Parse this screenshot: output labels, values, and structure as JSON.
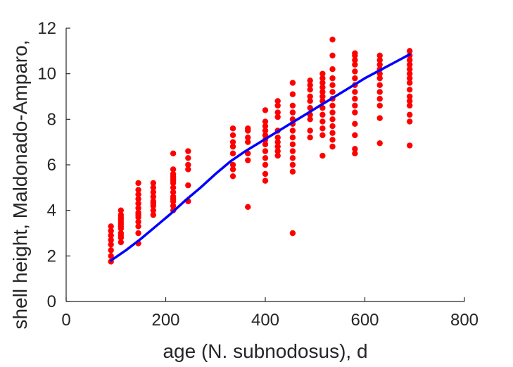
{
  "chart_data": {
    "type": "scatter",
    "title": "",
    "xlabel": "age (N. subnodosus), d",
    "ylabel": "shell height, Maldonado-Amparo,",
    "xlim": [
      0,
      800
    ],
    "ylim": [
      0,
      12
    ],
    "xticks": [
      "0",
      "200",
      "400",
      "600",
      "800"
    ],
    "yticks": [
      "0",
      "2",
      "4",
      "6",
      "8",
      "10",
      "12"
    ],
    "grid": false,
    "legend": "none",
    "colors": {
      "points": "#ff0000",
      "fit": "#0000ff",
      "axis": "#262626"
    },
    "series": [
      {
        "kind": "points",
        "x": [
          90,
          90,
          90,
          90,
          90,
          90,
          90,
          90,
          110,
          110,
          110,
          110,
          110,
          110,
          110,
          110,
          110,
          110,
          110,
          110,
          145,
          145,
          145,
          145,
          145,
          145,
          145,
          145,
          145,
          145,
          145,
          145,
          145,
          175,
          175,
          175,
          175,
          175,
          175,
          175,
          175,
          175,
          215,
          215,
          215,
          215,
          215,
          215,
          215,
          215,
          215,
          215,
          215,
          215,
          215,
          215,
          245,
          245,
          245,
          245,
          245,
          245,
          335,
          335,
          335,
          335,
          335,
          335,
          335,
          335,
          365,
          365,
          365,
          365,
          365,
          365,
          365,
          400,
          400,
          400,
          400,
          400,
          400,
          400,
          400,
          400,
          400,
          400,
          400,
          425,
          425,
          425,
          425,
          425,
          425,
          425,
          425,
          425,
          425,
          455,
          455,
          455,
          455,
          455,
          455,
          455,
          455,
          455,
          455,
          455,
          455,
          455,
          455,
          490,
          490,
          490,
          490,
          490,
          490,
          490,
          490,
          490,
          490,
          515,
          515,
          515,
          515,
          515,
          515,
          515,
          515,
          515,
          515,
          515,
          515,
          515,
          535,
          535,
          535,
          535,
          535,
          535,
          535,
          535,
          535,
          535,
          535,
          535,
          535,
          535,
          580,
          580,
          580,
          580,
          580,
          580,
          580,
          580,
          580,
          580,
          580,
          580,
          580,
          580,
          580,
          630,
          630,
          630,
          630,
          630,
          630,
          630,
          630,
          630,
          630,
          630,
          630,
          690,
          690,
          690,
          690,
          690,
          690,
          690,
          690,
          690,
          690,
          690,
          690,
          690,
          690,
          690
        ],
        "y": [
          1.75,
          2.0,
          2.25,
          2.5,
          2.7,
          2.9,
          3.1,
          3.3,
          2.6,
          2.8,
          3.0,
          3.2,
          3.4,
          3.6,
          3.8,
          4.0,
          2.9,
          3.3,
          3.5,
          3.7,
          2.55,
          3.0,
          3.3,
          3.5,
          3.7,
          3.9,
          4.1,
          4.3,
          4.5,
          4.7,
          4.9,
          5.2,
          3.8,
          3.8,
          4.0,
          4.2,
          4.4,
          4.6,
          4.8,
          5.0,
          5.2,
          4.3,
          4.0,
          4.2,
          4.4,
          4.6,
          4.8,
          5.0,
          5.2,
          5.4,
          5.6,
          5.8,
          6.5,
          4.5,
          5.3,
          5.5,
          4.4,
          5.1,
          5.8,
          6.0,
          6.3,
          6.6,
          5.5,
          5.8,
          6.0,
          6.5,
          6.8,
          7.0,
          7.3,
          7.6,
          4.15,
          6.2,
          6.5,
          7.0,
          7.2,
          7.5,
          7.6,
          5.3,
          5.6,
          6.0,
          6.3,
          6.6,
          6.9,
          7.1,
          7.3,
          7.5,
          7.7,
          7.9,
          8.4,
          6.4,
          6.6,
          6.8,
          7.0,
          7.2,
          7.5,
          8.1,
          8.3,
          8.6,
          8.8,
          3.0,
          5.7,
          6.0,
          6.3,
          6.6,
          6.9,
          7.2,
          7.5,
          7.8,
          8.0,
          8.3,
          8.6,
          9.1,
          9.6,
          7.2,
          7.5,
          8.0,
          8.2,
          8.5,
          8.8,
          9.0,
          9.3,
          9.5,
          9.7,
          6.4,
          7.3,
          7.6,
          7.9,
          8.2,
          8.5,
          8.8,
          9.0,
          9.2,
          9.4,
          9.6,
          9.8,
          10.0,
          6.8,
          7.1,
          7.4,
          7.7,
          8.0,
          8.3,
          8.6,
          8.9,
          9.2,
          9.5,
          9.8,
          10.2,
          10.8,
          11.5,
          6.5,
          6.7,
          7.3,
          7.8,
          8.3,
          8.6,
          8.9,
          9.2,
          9.5,
          9.8,
          10.1,
          10.4,
          10.6,
          10.8,
          10.9,
          6.95,
          8.05,
          8.6,
          8.9,
          9.2,
          9.5,
          9.8,
          10.0,
          10.2,
          10.4,
          10.6,
          10.8,
          6.85,
          7.9,
          8.2,
          8.6,
          8.8,
          9.0,
          9.3,
          9.6,
          9.8,
          10.0,
          10.2,
          10.4,
          10.6,
          10.8,
          11.0
        ]
      },
      {
        "kind": "fit-line",
        "x": [
          90,
          120,
          150,
          180,
          210,
          240,
          270,
          300,
          330,
          360,
          390,
          420,
          450,
          480,
          510,
          540,
          570,
          600,
          630,
          660,
          690
        ],
        "y": [
          1.8,
          2.25,
          2.75,
          3.3,
          3.85,
          4.45,
          5.0,
          5.6,
          6.15,
          6.6,
          7.0,
          7.4,
          7.8,
          8.2,
          8.6,
          9.0,
          9.4,
          9.8,
          10.15,
          10.5,
          10.85
        ]
      }
    ]
  }
}
